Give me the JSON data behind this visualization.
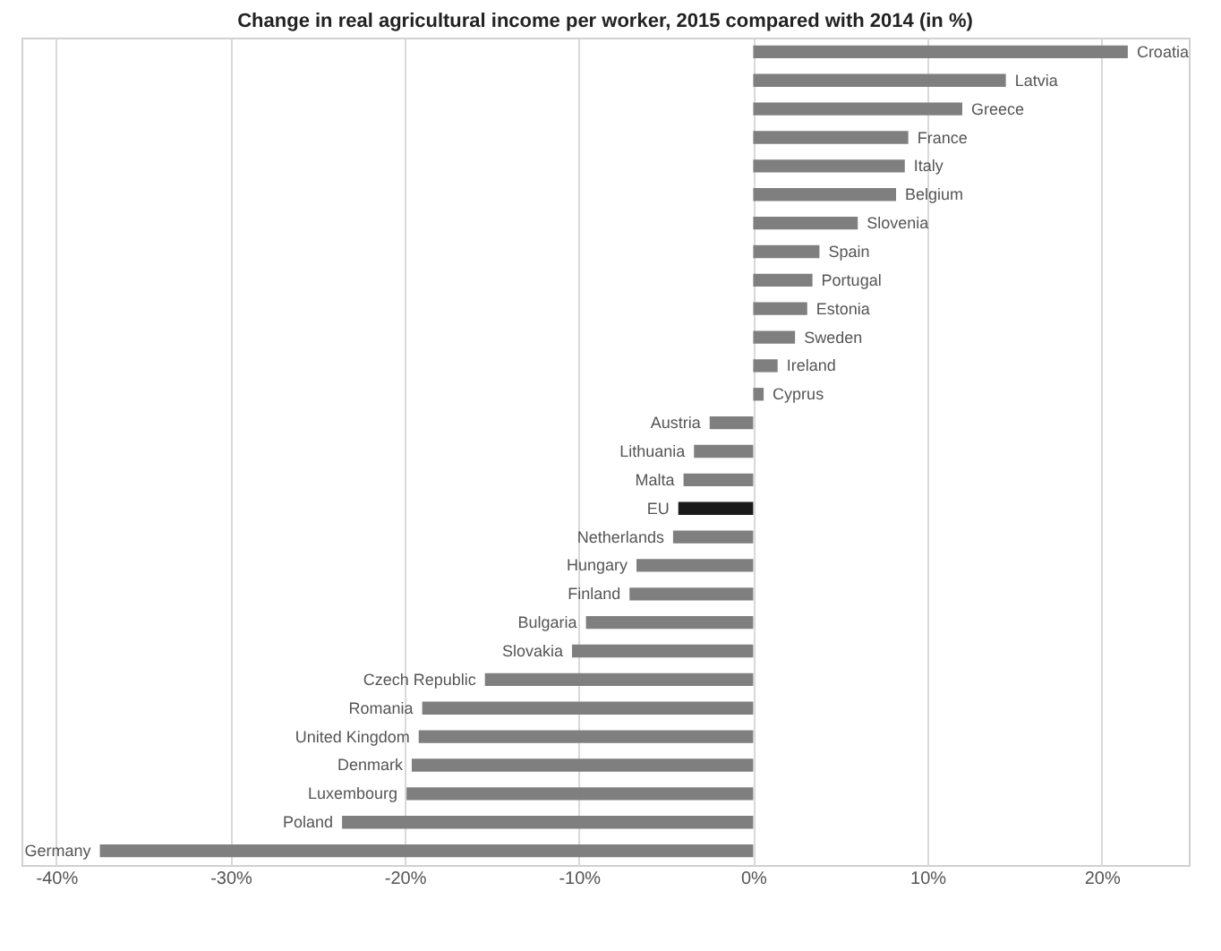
{
  "chart_data": {
    "type": "bar",
    "orientation": "horizontal",
    "title": "Change in real agricultural income per worker, 2015 compared with 2014 (in %)",
    "categories": [
      "Croatia",
      "Latvia",
      "Greece",
      "France",
      "Italy",
      "Belgium",
      "Slovenia",
      "Spain",
      "Portugal",
      "Estonia",
      "Sweden",
      "Ireland",
      "Cyprus",
      "Austria",
      "Lithuania",
      "Malta",
      "EU",
      "Netherlands",
      "Hungary",
      "Finland",
      "Bulgaria",
      "Slovakia",
      "Czech Republic",
      "Romania",
      "United Kingdom",
      "Denmark",
      "Luxembourg",
      "Poland",
      "Germany"
    ],
    "values": [
      21.5,
      14.5,
      12.0,
      8.9,
      8.7,
      8.2,
      6.0,
      3.8,
      3.4,
      3.1,
      2.4,
      1.4,
      0.6,
      -2.5,
      -3.4,
      -4.0,
      -4.3,
      -4.6,
      -6.7,
      -7.1,
      -9.6,
      -10.4,
      -15.4,
      -19.0,
      -19.2,
      -19.6,
      -19.9,
      -23.6,
      -37.5
    ],
    "colors": [
      "#7f7f7f",
      "#7f7f7f",
      "#7f7f7f",
      "#7f7f7f",
      "#7f7f7f",
      "#7f7f7f",
      "#7f7f7f",
      "#7f7f7f",
      "#7f7f7f",
      "#7f7f7f",
      "#7f7f7f",
      "#7f7f7f",
      "#7f7f7f",
      "#7f7f7f",
      "#7f7f7f",
      "#7f7f7f",
      "#1a1a1a",
      "#7f7f7f",
      "#7f7f7f",
      "#7f7f7f",
      "#7f7f7f",
      "#7f7f7f",
      "#7f7f7f",
      "#7f7f7f",
      "#7f7f7f",
      "#7f7f7f",
      "#7f7f7f",
      "#7f7f7f",
      "#7f7f7f"
    ],
    "xlim": [
      -42,
      25
    ],
    "xticks": [
      {
        "value": -40,
        "label": "-40%"
      },
      {
        "value": -30,
        "label": "-30%"
      },
      {
        "value": -20,
        "label": "-20%"
      },
      {
        "value": -10,
        "label": "-10%"
      },
      {
        "value": 0,
        "label": "0%"
      },
      {
        "value": 10,
        "label": "10%"
      },
      {
        "value": 20,
        "label": "20%"
      }
    ],
    "grid": "x",
    "tick_labels": "x"
  }
}
